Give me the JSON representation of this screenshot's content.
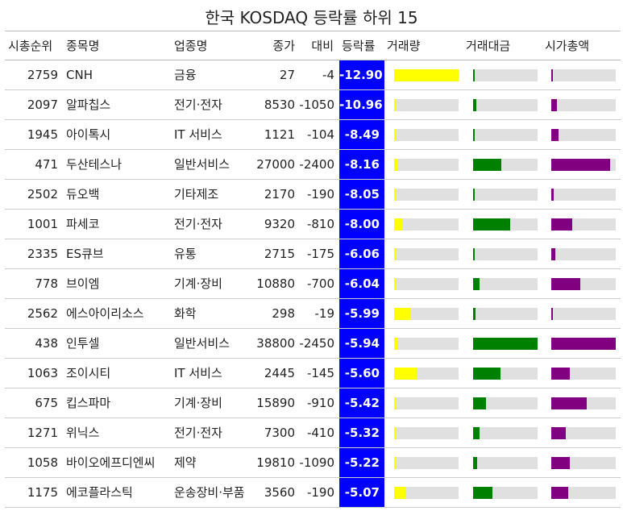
{
  "title": "한국 KOSDAQ 등락률 하위 15",
  "columns": {
    "rank": "시총순위",
    "name": "종목명",
    "sector": "업종명",
    "price": "종가",
    "diff": "대비",
    "change": "등락률",
    "volume": "거래량",
    "amount": "거래대금",
    "cap": "시가총액"
  },
  "colors": {
    "change_bg": "#0000ff",
    "volume": "#ffff00",
    "amount": "#008000",
    "cap": "#800080",
    "track": "#e0e0e0"
  },
  "chart_data": {
    "type": "table",
    "rows": [
      {
        "rank": "2759",
        "name": "CNH",
        "sector": "금융",
        "price": "27",
        "diff": "-4",
        "change": "-12.90",
        "volume": 1.0,
        "amount": 0.02,
        "cap": 0.02
      },
      {
        "rank": "2097",
        "name": "알파칩스",
        "sector": "전기·전자",
        "price": "8530",
        "diff": "-1050",
        "change": "-10.96",
        "volume": 0.02,
        "amount": 0.05,
        "cap": 0.09
      },
      {
        "rank": "1945",
        "name": "아이톡시",
        "sector": "IT 서비스",
        "price": "1121",
        "diff": "-104",
        "change": "-8.49",
        "volume": 0.03,
        "amount": 0.02,
        "cap": 0.11
      },
      {
        "rank": "471",
        "name": "두산테스나",
        "sector": "일반서비스",
        "price": "27000",
        "diff": "-2400",
        "change": "-8.16",
        "volume": 0.05,
        "amount": 0.44,
        "cap": 0.91
      },
      {
        "rank": "2502",
        "name": "듀오백",
        "sector": "기타제조",
        "price": "2170",
        "diff": "-190",
        "change": "-8.05",
        "volume": 0.02,
        "amount": 0.02,
        "cap": 0.04
      },
      {
        "rank": "1001",
        "name": "파세코",
        "sector": "전기·전자",
        "price": "9320",
        "diff": "-810",
        "change": "-8.00",
        "volume": 0.13,
        "amount": 0.58,
        "cap": 0.32
      },
      {
        "rank": "2335",
        "name": "ES큐브",
        "sector": "유통",
        "price": "2715",
        "diff": "-175",
        "change": "-6.06",
        "volume": 0.02,
        "amount": 0.02,
        "cap": 0.06
      },
      {
        "rank": "778",
        "name": "브이엠",
        "sector": "기계·장비",
        "price": "10880",
        "diff": "-700",
        "change": "-6.04",
        "volume": 0.02,
        "amount": 0.1,
        "cap": 0.45
      },
      {
        "rank": "2562",
        "name": "에스아이리소스",
        "sector": "화학",
        "price": "298",
        "diff": "-19",
        "change": "-5.99",
        "volume": 0.26,
        "amount": 0.04,
        "cap": 0.02
      },
      {
        "rank": "438",
        "name": "인투셀",
        "sector": "일반서비스",
        "price": "38800",
        "diff": "-2450",
        "change": "-5.94",
        "volume": 0.06,
        "amount": 1.0,
        "cap": 1.0
      },
      {
        "rank": "1063",
        "name": "조이시티",
        "sector": "IT 서비스",
        "price": "2445",
        "diff": "-145",
        "change": "-5.60",
        "volume": 0.35,
        "amount": 0.42,
        "cap": 0.29
      },
      {
        "rank": "675",
        "name": "킵스파마",
        "sector": "기계·장비",
        "price": "15890",
        "diff": "-910",
        "change": "-5.42",
        "volume": 0.03,
        "amount": 0.2,
        "cap": 0.55
      },
      {
        "rank": "1271",
        "name": "위닉스",
        "sector": "전기·전자",
        "price": "7300",
        "diff": "-410",
        "change": "-5.32",
        "volume": 0.02,
        "amount": 0.1,
        "cap": 0.22
      },
      {
        "rank": "1058",
        "name": "바이오에프디엔씨",
        "sector": "제약",
        "price": "19810",
        "diff": "-1090",
        "change": "-5.22",
        "volume": 0.02,
        "amount": 0.06,
        "cap": 0.29
      },
      {
        "rank": "1175",
        "name": "에코플라스틱",
        "sector": "운송장비·부품",
        "price": "3560",
        "diff": "-190",
        "change": "-5.07",
        "volume": 0.17,
        "amount": 0.3,
        "cap": 0.26
      }
    ]
  }
}
